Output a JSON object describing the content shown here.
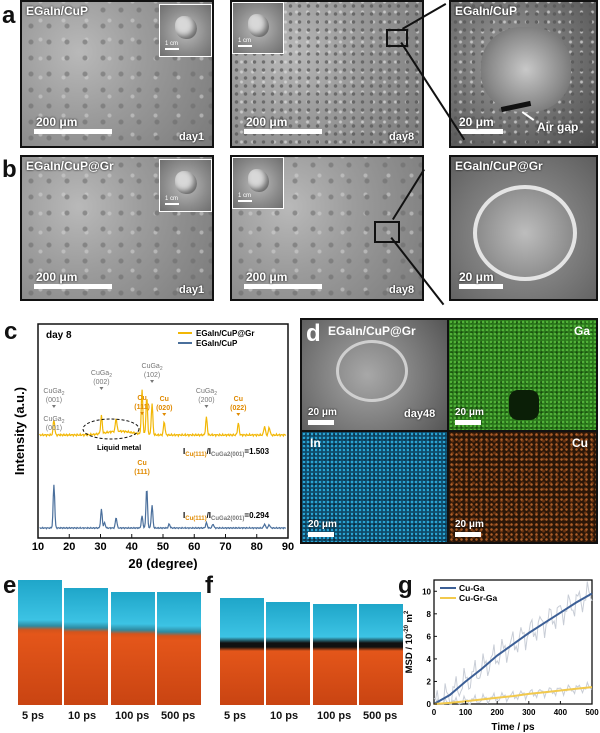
{
  "panels": {
    "a": {
      "label": "a",
      "title": "EGaIn/CuP",
      "zoom_title": "EGaIn/CuP",
      "scale1": "200 μm",
      "day1": "day1",
      "scale2": "200 μm",
      "day8": "day8",
      "scale3": "20 μm",
      "airgap": "Air gap",
      "inset1": "1 cm",
      "inset2": "1 cm"
    },
    "b": {
      "label": "b",
      "title": "EGaIn/CuP@Gr",
      "zoom_title": "EGaIn/CuP@Gr",
      "scale1": "200 μm",
      "day1": "day1",
      "scale2": "200 μm",
      "day8": "day8",
      "scale3": "20 μm",
      "inset1": "1 cm",
      "inset2": "1 cm"
    },
    "c": {
      "label": "c",
      "day": "day 8",
      "liquid_metal": "Liquid metal",
      "ratio1_text": "I",
      "ratio1_sub": "Cu(111)",
      "ratio1_mid": "/I",
      "ratio1_sub2": "CuGa2(001)",
      "ratio1_val": "=1.503",
      "ratio2_val": "=0.294",
      "peak_labels_top": [
        {
          "name": "CuGa",
          "sub": "2",
          "hkl": "(001)",
          "color": "#777777"
        },
        {
          "name": "CuGa",
          "sub": "2",
          "hkl": "(002)",
          "color": "#777777"
        },
        {
          "name": "Cu",
          "sub": "",
          "hkl": "(111)",
          "color": "#e08a00"
        },
        {
          "name": "CuGa",
          "sub": "2",
          "hkl": "(102)",
          "color": "#777777"
        },
        {
          "name": "Cu",
          "sub": "",
          "hkl": "(020)",
          "color": "#e08a00"
        },
        {
          "name": "CuGa",
          "sub": "2",
          "hkl": "(200)",
          "color": "#777777"
        },
        {
          "name": "Cu",
          "sub": "",
          "hkl": "(022)",
          "color": "#e08a00"
        }
      ],
      "peak_labels_bottom": [
        {
          "name": "CuGa",
          "sub": "2",
          "hkl": "(001)",
          "color": "#777777"
        },
        {
          "name": "Cu",
          "sub": "",
          "hkl": "(111)",
          "color": "#e08a00"
        }
      ]
    },
    "d": {
      "label": "d",
      "title": "EGaIn/CuP@Gr",
      "ga": "Ga",
      "in": "In",
      "cu": "Cu",
      "scale": "20 μm",
      "day": "day48"
    },
    "e": {
      "label": "e",
      "times": [
        "5 ps",
        "10 ps",
        "100 ps",
        "500 ps"
      ]
    },
    "f": {
      "label": "f",
      "times": [
        "5 ps",
        "10 ps",
        "100 ps",
        "500 ps"
      ]
    },
    "g": {
      "label": "g"
    }
  },
  "chart_data": [
    {
      "type": "line",
      "panel": "c",
      "xlabel": "2θ (degree)",
      "ylabel": "Intensity (a.u.)",
      "xlim": [
        10,
        90
      ],
      "xticks": [
        10,
        20,
        30,
        40,
        50,
        60,
        70,
        80,
        90
      ],
      "legend_position": "top-right",
      "series": [
        {
          "name": "EGaIn/CuP@Gr",
          "color": "#f2b705",
          "peaks": [
            [
              15.1,
              0.14
            ],
            [
              30.3,
              0.16
            ],
            [
              35,
              0.12
            ],
            [
              43.3,
              0.4
            ],
            [
              44.8,
              0.34
            ],
            [
              46.5,
              0.28
            ],
            [
              50.4,
              0.12
            ],
            [
              63.9,
              0.16
            ],
            [
              74.1,
              0.11
            ],
            [
              82.5,
              0.08
            ],
            [
              84,
              0.07
            ]
          ]
        },
        {
          "name": "EGaIn/CuP",
          "color": "#4a6f9c",
          "peaks": [
            [
              15.1,
              0.66
            ],
            [
              30.3,
              0.28
            ],
            [
              31.3,
              0.08
            ],
            [
              35,
              0.16
            ],
            [
              43.3,
              0.18
            ],
            [
              44.8,
              0.6
            ],
            [
              46.5,
              0.34
            ],
            [
              52,
              0.06
            ],
            [
              63.9,
              0.08
            ],
            [
              66,
              0.06
            ],
            [
              82.5,
              0.06
            ],
            [
              84,
              0.05
            ]
          ]
        }
      ]
    },
    {
      "type": "line",
      "panel": "g",
      "xlabel": "Time / ps",
      "ylabel": "MSD / 10",
      "ylabel_sup": "-20",
      "ylabel_unit": " m",
      "ylabel_sup2": "2",
      "xlim": [
        0,
        500
      ],
      "ylim": [
        0,
        11
      ],
      "xticks": [
        0,
        100,
        200,
        300,
        400,
        500
      ],
      "yticks": [
        0,
        2,
        4,
        6,
        8,
        10
      ],
      "legend_position": "top-left",
      "series": [
        {
          "name": "Cu-Ga",
          "color": "#3c5f96",
          "x": [
            0,
            50,
            100,
            150,
            200,
            250,
            300,
            350,
            400,
            450,
            500
          ],
          "y": [
            0,
            0.8,
            2.0,
            3.1,
            4.3,
            5.3,
            6.3,
            7.2,
            8.1,
            9.0,
            9.8
          ]
        },
        {
          "name": "Cu-Gr-Ga",
          "color": "#f2c94c",
          "x": [
            0,
            50,
            100,
            150,
            200,
            250,
            300,
            350,
            400,
            450,
            500
          ],
          "y": [
            0,
            0.1,
            0.25,
            0.4,
            0.55,
            0.7,
            0.9,
            1.05,
            1.2,
            1.35,
            1.5
          ]
        }
      ]
    }
  ]
}
